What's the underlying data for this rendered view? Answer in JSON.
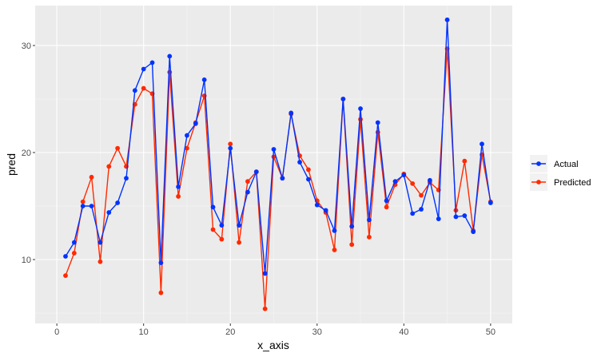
{
  "chart_data": {
    "type": "line",
    "title": "",
    "xlabel": "x_axis",
    "ylabel": "pred",
    "xlim": [
      -2.5,
      52.5
    ],
    "ylim": [
      4.03,
      33.73
    ],
    "x_ticks": [
      0,
      10,
      20,
      30,
      40,
      50
    ],
    "y_ticks": [
      10,
      20,
      30
    ],
    "x_minor": [
      5,
      15,
      25,
      35,
      45
    ],
    "y_minor": [
      5,
      15,
      25
    ],
    "grid": true,
    "legend_position": "right",
    "x": [
      1,
      2,
      3,
      4,
      5,
      6,
      7,
      8,
      9,
      10,
      11,
      12,
      13,
      14,
      15,
      16,
      17,
      18,
      19,
      20,
      21,
      22,
      23,
      24,
      25,
      26,
      27,
      28,
      29,
      30,
      31,
      32,
      33,
      34,
      35,
      36,
      37,
      38,
      39,
      40,
      41,
      42,
      43,
      44,
      45,
      46,
      47,
      48,
      49,
      50
    ],
    "series": [
      {
        "name": "Actual",
        "color": "#0033ff",
        "values": [
          10.3,
          11.6,
          15.0,
          15.0,
          11.6,
          14.4,
          15.3,
          17.6,
          25.8,
          27.8,
          28.4,
          9.7,
          29.0,
          16.8,
          21.6,
          22.7,
          26.8,
          14.9,
          13.2,
          20.4,
          13.2,
          16.3,
          18.2,
          8.7,
          20.3,
          17.6,
          23.7,
          19.1,
          17.5,
          15.1,
          14.6,
          12.7,
          25.0,
          13.1,
          24.1,
          13.7,
          22.8,
          15.5,
          17.3,
          17.9,
          14.3,
          14.7,
          17.4,
          13.8,
          32.4,
          14.0,
          14.1,
          12.6,
          20.8,
          15.3
        ]
      },
      {
        "name": "Predicted",
        "color": "#ff2a00",
        "values": [
          8.5,
          10.6,
          15.4,
          17.7,
          9.8,
          18.7,
          20.4,
          18.7,
          24.5,
          26.0,
          25.5,
          6.9,
          27.5,
          15.9,
          20.4,
          22.8,
          25.3,
          12.8,
          11.9,
          20.8,
          11.6,
          17.3,
          18.2,
          5.4,
          19.6,
          17.6,
          23.6,
          19.7,
          18.4,
          15.5,
          14.4,
          10.9,
          25.0,
          11.4,
          23.1,
          12.1,
          21.9,
          14.9,
          17.0,
          18.0,
          17.1,
          16.0,
          17.2,
          16.5,
          29.7,
          14.6,
          19.2,
          12.7,
          19.8,
          15.4
        ]
      }
    ]
  },
  "axes": {
    "x_title": "x_axis",
    "y_title": "pred"
  },
  "legend": {
    "items": [
      {
        "label": "Actual",
        "color": "#0033ff"
      },
      {
        "label": "Predicted",
        "color": "#ff2a00"
      }
    ]
  },
  "colors": {
    "panel_bg": "#ebebeb",
    "grid_major": "#ffffff",
    "legend_key_bg": "#f2f2f2"
  }
}
